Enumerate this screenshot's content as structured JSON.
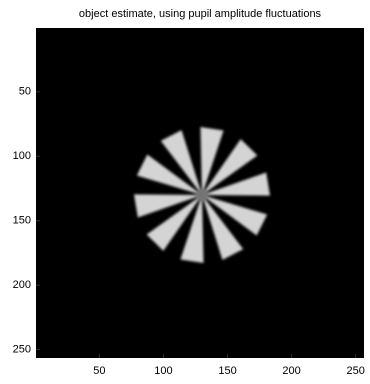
{
  "chart_data": {
    "type": "image",
    "title": "object estimate, using pupil amplitude fluctuations",
    "xlim": [
      0.5,
      256.5
    ],
    "ylim": [
      0.5,
      256.5
    ],
    "y_reversed": true,
    "xticks": [
      50,
      100,
      150,
      200,
      250
    ],
    "yticks": [
      50,
      100,
      150,
      200,
      250
    ],
    "colormap": "gray"
  }
}
